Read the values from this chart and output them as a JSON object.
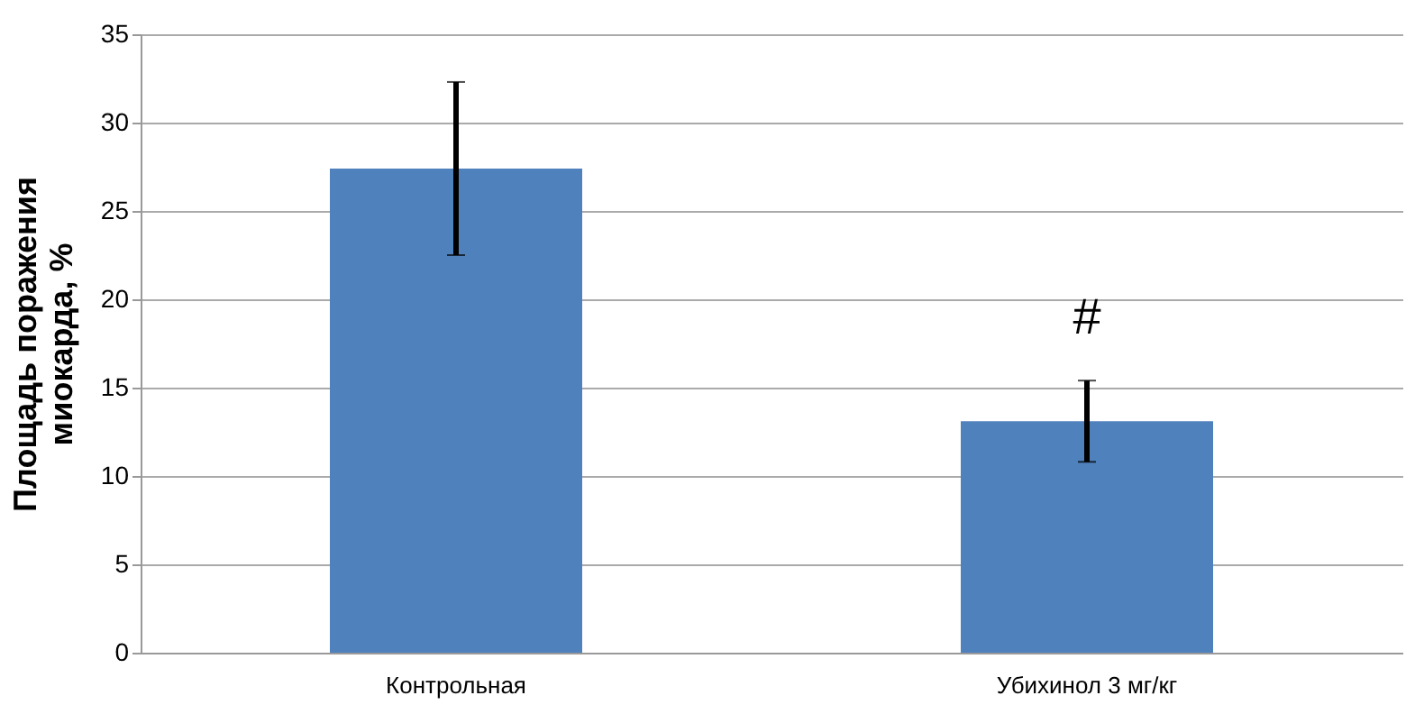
{
  "chart_data": {
    "type": "bar",
    "ylabel": "Площадь поражения\nмиокарда, %",
    "categories": [
      "Контрольная",
      "Убихинол 3 мг/кг"
    ],
    "values": [
      27.4,
      13.1
    ],
    "errors": [
      4.9,
      2.3
    ],
    "color": "#4f81bd",
    "ylim": [
      0,
      35
    ],
    "yticks": [
      0,
      5,
      10,
      15,
      20,
      25,
      30,
      35
    ],
    "grid": "y",
    "annotations": [
      "#"
    ]
  }
}
